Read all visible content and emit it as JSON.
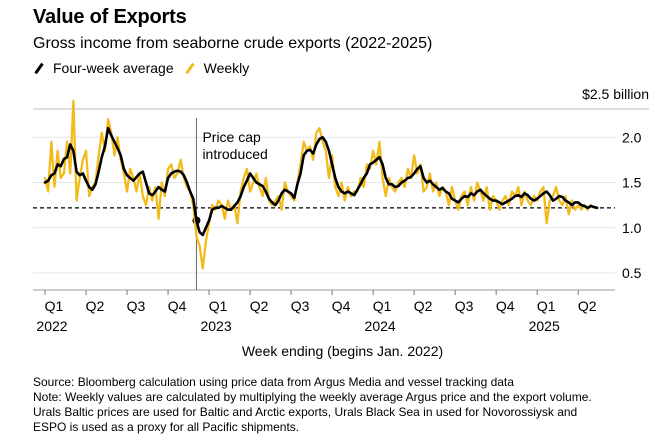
{
  "header": {
    "title": "Value of Exports",
    "subtitle": "Gross income from seaborne crude exports (2022-2025)"
  },
  "legend": [
    {
      "label": "Four-week average",
      "color": "#000000"
    },
    {
      "label": "Weekly",
      "color": "#f2bb1b"
    }
  ],
  "chart_data": {
    "type": "line",
    "title": "Value of Exports",
    "subtitle": "Gross income from seaborne crude exports (2022-2025)",
    "xlabel": "Week ending (begins Jan. 2022)",
    "ylabel": "",
    "unit_label": "$2.5 billion",
    "ylim": [
      0.3,
      2.5
    ],
    "yticks": [
      "2.0",
      "1.5",
      "1.0",
      "0.5"
    ],
    "ytick_values": [
      2.0,
      1.5,
      1.0,
      0.5
    ],
    "xtick_labels": [
      "Q1",
      "Q2",
      "Q3",
      "Q4",
      "Q1",
      "Q2",
      "Q3",
      "Q4",
      "Q1",
      "Q2",
      "Q3",
      "Q4",
      "Q1",
      "Q2"
    ],
    "xtick_weeks": [
      0,
      13,
      26,
      39,
      52,
      65,
      78,
      91,
      104,
      117,
      130,
      143,
      156,
      169
    ],
    "year_labels": [
      "2022",
      "2023",
      "2024",
      "2025"
    ],
    "year_weeks": [
      0,
      52,
      104,
      156
    ],
    "reference_line": {
      "value": 1.22,
      "style": "dashed"
    },
    "annotation": {
      "lines": [
        "Price cap",
        "introduced"
      ],
      "week": 48
    },
    "series": [
      {
        "name": "Four-week average",
        "color": "#000000",
        "values": [
          1.5,
          1.52,
          1.58,
          1.6,
          1.7,
          1.68,
          1.76,
          1.78,
          1.92,
          1.85,
          1.62,
          1.58,
          1.6,
          1.52,
          1.45,
          1.42,
          1.48,
          1.62,
          1.78,
          1.9,
          2.1,
          2.02,
          1.95,
          1.88,
          1.8,
          1.65,
          1.58,
          1.55,
          1.52,
          1.56,
          1.6,
          1.62,
          1.5,
          1.38,
          1.36,
          1.4,
          1.45,
          1.42,
          1.4,
          1.55,
          1.6,
          1.62,
          1.63,
          1.62,
          1.58,
          1.5,
          1.4,
          1.32,
          1.08,
          0.95,
          0.92,
          1.0,
          1.08,
          1.2,
          1.22,
          1.22,
          1.24,
          1.22,
          1.2,
          1.2,
          1.24,
          1.28,
          1.35,
          1.45,
          1.52,
          1.6,
          1.55,
          1.5,
          1.48,
          1.46,
          1.4,
          1.32,
          1.28,
          1.25,
          1.3,
          1.38,
          1.42,
          1.4,
          1.38,
          1.33,
          1.48,
          1.6,
          1.8,
          1.85,
          1.86,
          1.82,
          1.92,
          1.98,
          2.0,
          1.95,
          1.85,
          1.7,
          1.55,
          1.45,
          1.4,
          1.38,
          1.4,
          1.38,
          1.36,
          1.42,
          1.48,
          1.55,
          1.6,
          1.7,
          1.72,
          1.75,
          1.78,
          1.7,
          1.55,
          1.48,
          1.48,
          1.45,
          1.46,
          1.5,
          1.52,
          1.55,
          1.56,
          1.6,
          1.65,
          1.68,
          1.55,
          1.5,
          1.52,
          1.48,
          1.45,
          1.42,
          1.44,
          1.4,
          1.38,
          1.32,
          1.3,
          1.28,
          1.32,
          1.35,
          1.34,
          1.38,
          1.36,
          1.4,
          1.42,
          1.38,
          1.35,
          1.32,
          1.3,
          1.3,
          1.28,
          1.26,
          1.28,
          1.3,
          1.32,
          1.35,
          1.36,
          1.34,
          1.38,
          1.36,
          1.32,
          1.3,
          1.32,
          1.35,
          1.38,
          1.4,
          1.36,
          1.3,
          1.32,
          1.35,
          1.34,
          1.3,
          1.28,
          1.25,
          1.28,
          1.28,
          1.25,
          1.24,
          1.22,
          1.24,
          1.23,
          1.22
        ]
      },
      {
        "name": "Weekly",
        "color": "#f2bb1b",
        "values": [
          1.55,
          1.4,
          1.95,
          1.45,
          1.85,
          1.55,
          1.6,
          1.95,
          1.6,
          2.4,
          1.3,
          1.55,
          1.75,
          1.85,
          1.35,
          1.45,
          1.5,
          1.8,
          2.05,
          1.85,
          2.2,
          2.05,
          1.8,
          2.0,
          1.75,
          1.6,
          1.4,
          1.65,
          1.55,
          1.4,
          1.6,
          1.35,
          1.25,
          1.45,
          1.3,
          1.45,
          1.1,
          1.5,
          1.35,
          1.65,
          1.7,
          1.55,
          1.6,
          1.75,
          1.55,
          1.45,
          1.4,
          1.25,
          0.9,
          0.8,
          0.55,
          0.85,
          1.05,
          1.25,
          1.2,
          1.3,
          1.25,
          1.1,
          1.3,
          1.2,
          1.25,
          1.05,
          1.4,
          1.55,
          1.65,
          1.4,
          1.5,
          1.6,
          1.45,
          1.35,
          1.55,
          1.3,
          1.25,
          1.3,
          1.35,
          1.2,
          1.5,
          1.4,
          1.35,
          1.3,
          1.5,
          1.7,
          1.95,
          1.85,
          1.9,
          1.75,
          2.05,
          2.1,
          1.95,
          1.85,
          1.55,
          1.8,
          1.45,
          1.35,
          1.5,
          1.3,
          1.45,
          1.35,
          1.4,
          1.4,
          1.55,
          1.45,
          1.7,
          1.65,
          1.85,
          1.7,
          1.95,
          1.55,
          1.35,
          1.55,
          1.45,
          1.4,
          1.5,
          1.55,
          1.45,
          1.65,
          1.55,
          1.8,
          1.6,
          1.7,
          1.4,
          1.45,
          1.6,
          1.4,
          1.5,
          1.35,
          1.45,
          1.4,
          1.25,
          1.45,
          1.3,
          1.2,
          1.35,
          1.4,
          1.25,
          1.45,
          1.3,
          1.5,
          1.4,
          1.3,
          1.45,
          1.2,
          1.35,
          1.3,
          1.2,
          1.3,
          1.35,
          1.25,
          1.4,
          1.35,
          1.45,
          1.25,
          1.4,
          1.3,
          1.25,
          1.35,
          1.3,
          1.4,
          1.45,
          1.05,
          1.3,
          1.35,
          1.45,
          1.3,
          1.25,
          1.35,
          1.15,
          1.3,
          1.2,
          1.25,
          1.2,
          1.25,
          1.2,
          1.25,
          1.22
        ]
      }
    ]
  },
  "footer": {
    "x_axis_title": "Week ending (begins Jan. 2022)",
    "source_lines": [
      "Source: Bloomberg calculation using price data from Argus Media and vessel tracking data",
      "Note: Weekly values are calculated by multiplying the weekly average Argus price and the export volume.",
      "Urals Baltic prices are used for Baltic and Arctic exports, Urals Black Sea in used for Novorossiysk and",
      "ESPO is used as a proxy for all Pacific shipments."
    ]
  }
}
